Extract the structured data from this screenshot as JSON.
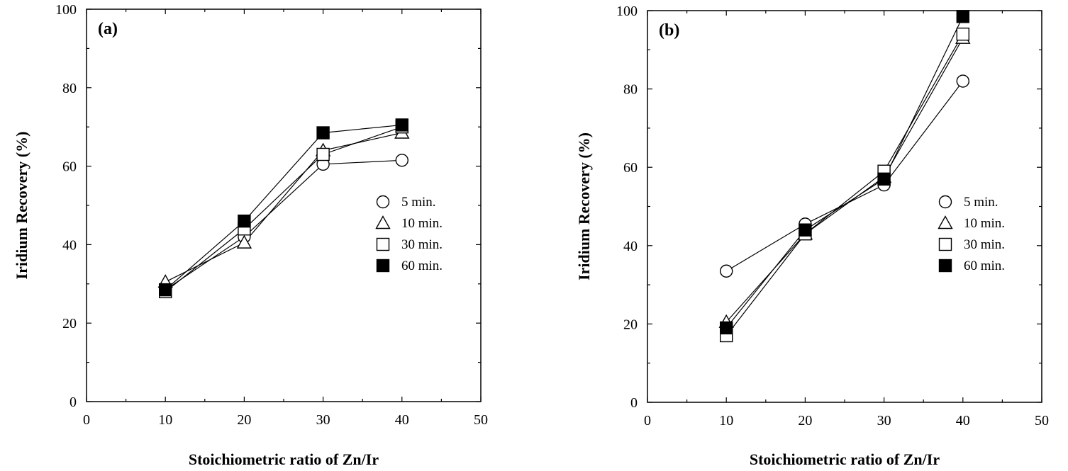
{
  "chart_data": [
    {
      "type": "line",
      "panel_label": "(a)",
      "xlabel": "Stoichiometric ratio of Zn/Ir",
      "ylabel": "Iridium Recovery (%)",
      "xlim": [
        0,
        50
      ],
      "ylim": [
        0,
        100
      ],
      "x_ticks": [
        "0",
        "10",
        "20",
        "30",
        "40",
        "50"
      ],
      "y_ticks": [
        "0",
        "20",
        "40",
        "60",
        "80",
        "100"
      ],
      "x": [
        10,
        20,
        30,
        40
      ],
      "legend_position": "right-middle",
      "series": [
        {
          "name": "5 min.",
          "marker": "circle",
          "values": [
            28.5,
            42.0,
            60.5,
            61.5
          ]
        },
        {
          "name": "10 min.",
          "marker": "triangle",
          "values": [
            30.5,
            40.5,
            64.0,
            68.5
          ]
        },
        {
          "name": "30 min.",
          "marker": "square-open",
          "values": [
            28.0,
            44.0,
            63.0,
            70.0
          ]
        },
        {
          "name": "60 min.",
          "marker": "square-filled",
          "values": [
            28.5,
            46.0,
            68.5,
            70.5
          ]
        }
      ]
    },
    {
      "type": "line",
      "panel_label": "(b)",
      "xlabel": "Stoichiometric ratio of Zn/Ir",
      "ylabel": "Iridium Recovery (%)",
      "xlim": [
        0,
        50
      ],
      "ylim": [
        0,
        100
      ],
      "x_ticks": [
        "0",
        "10",
        "20",
        "30",
        "40",
        "50"
      ],
      "y_ticks": [
        "0",
        "20",
        "40",
        "60",
        "80",
        "100"
      ],
      "x": [
        10,
        20,
        30,
        40
      ],
      "legend_position": "right-middle",
      "series": [
        {
          "name": "5 min.",
          "marker": "circle",
          "values": [
            33.5,
            45.5,
            55.5,
            82.0
          ]
        },
        {
          "name": "10 min.",
          "marker": "triangle",
          "values": [
            20.5,
            43.0,
            57.5,
            93.0
          ]
        },
        {
          "name": "30 min.",
          "marker": "square-open",
          "values": [
            17.0,
            43.0,
            59.0,
            94.0
          ]
        },
        {
          "name": "60 min.",
          "marker": "square-filled",
          "values": [
            19.0,
            44.0,
            57.0,
            98.5
          ]
        }
      ]
    }
  ]
}
